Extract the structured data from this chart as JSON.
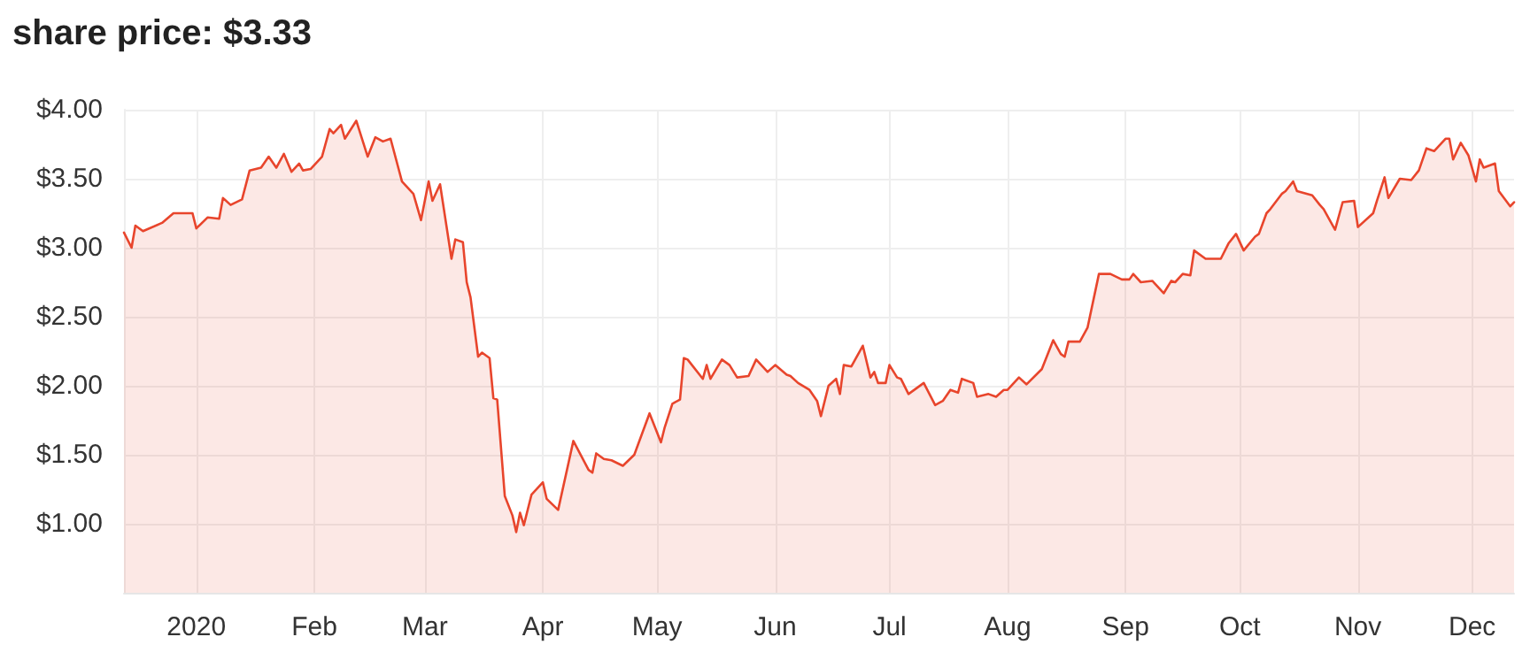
{
  "chart_data": {
    "type": "area",
    "title": "share price: $3.33",
    "x": [
      "2019-12-13",
      "2019-12-15",
      "2019-12-16",
      "2019-12-18",
      "2019-12-23",
      "2019-12-26",
      "2019-12-31",
      "2020-01-01",
      "2020-01-04",
      "2020-01-07",
      "2020-01-08",
      "2020-01-10",
      "2020-01-13",
      "2020-01-15",
      "2020-01-18",
      "2020-01-20",
      "2020-01-22",
      "2020-01-24",
      "2020-01-26",
      "2020-01-28",
      "2020-01-29",
      "2020-01-31",
      "2020-02-03",
      "2020-02-05",
      "2020-02-06",
      "2020-02-08",
      "2020-02-09",
      "2020-02-12",
      "2020-02-15",
      "2020-02-17",
      "2020-02-19",
      "2020-02-21",
      "2020-02-24",
      "2020-02-27",
      "2020-02-29",
      "2020-03-02",
      "2020-03-03",
      "2020-03-05",
      "2020-03-08",
      "2020-03-09",
      "2020-03-11",
      "2020-03-12",
      "2020-03-13",
      "2020-03-15",
      "2020-03-16",
      "2020-03-18",
      "2020-03-19",
      "2020-03-20",
      "2020-03-22",
      "2020-03-24",
      "2020-03-25",
      "2020-03-26",
      "2020-03-27",
      "2020-03-29",
      "2020-04-01",
      "2020-04-02",
      "2020-04-05",
      "2020-04-09",
      "2020-04-13",
      "2020-04-14",
      "2020-04-15",
      "2020-04-17",
      "2020-04-19",
      "2020-04-22",
      "2020-04-25",
      "2020-04-29",
      "2020-05-02",
      "2020-05-03",
      "2020-05-05",
      "2020-05-07",
      "2020-05-08",
      "2020-05-09",
      "2020-05-13",
      "2020-05-14",
      "2020-05-15",
      "2020-05-18",
      "2020-05-20",
      "2020-05-22",
      "2020-05-25",
      "2020-05-27",
      "2020-05-30",
      "2020-06-01",
      "2020-06-04",
      "2020-06-05",
      "2020-06-07",
      "2020-06-10",
      "2020-06-12",
      "2020-06-13",
      "2020-06-15",
      "2020-06-17",
      "2020-06-18",
      "2020-06-19",
      "2020-06-21",
      "2020-06-24",
      "2020-06-26",
      "2020-06-27",
      "2020-06-28",
      "2020-06-30",
      "2020-07-01",
      "2020-07-03",
      "2020-07-04",
      "2020-07-06",
      "2020-07-10",
      "2020-07-13",
      "2020-07-15",
      "2020-07-17",
      "2020-07-19",
      "2020-07-20",
      "2020-07-23",
      "2020-07-24",
      "2020-07-27",
      "2020-07-29",
      "2020-07-31",
      "2020-08-01",
      "2020-08-04",
      "2020-08-06",
      "2020-08-10",
      "2020-08-13",
      "2020-08-15",
      "2020-08-16",
      "2020-08-17",
      "2020-08-20",
      "2020-08-22",
      "2020-08-25",
      "2020-08-28",
      "2020-08-31",
      "2020-09-02",
      "2020-09-03",
      "2020-09-05",
      "2020-09-08",
      "2020-09-11",
      "2020-09-13",
      "2020-09-14",
      "2020-09-16",
      "2020-09-18",
      "2020-09-19",
      "2020-09-22",
      "2020-09-26",
      "2020-09-28",
      "2020-09-30",
      "2020-10-02",
      "2020-10-05",
      "2020-10-06",
      "2020-10-08",
      "2020-10-09",
      "2020-10-12",
      "2020-10-13",
      "2020-10-15",
      "2020-10-16",
      "2020-10-20",
      "2020-10-22",
      "2020-10-23",
      "2020-10-26",
      "2020-10-28",
      "2020-10-31",
      "2020-11-01",
      "2020-11-05",
      "2020-11-06",
      "2020-11-08",
      "2020-11-09",
      "2020-11-12",
      "2020-11-15",
      "2020-11-17",
      "2020-11-19",
      "2020-11-21",
      "2020-11-24",
      "2020-11-25",
      "2020-11-26",
      "2020-11-28",
      "2020-11-30",
      "2020-12-02",
      "2020-12-03",
      "2020-12-04",
      "2020-12-07",
      "2020-12-08",
      "2020-12-11",
      "2020-12-12"
    ],
    "series": [
      {
        "color": "#e8452c",
        "values": [
          3.11,
          3.0,
          3.16,
          3.12,
          3.18,
          3.25,
          3.25,
          3.14,
          3.22,
          3.21,
          3.36,
          3.31,
          3.35,
          3.56,
          3.58,
          3.66,
          3.58,
          3.68,
          3.55,
          3.61,
          3.56,
          3.57,
          3.66,
          3.86,
          3.83,
          3.89,
          3.79,
          3.92,
          3.66,
          3.8,
          3.77,
          3.79,
          3.48,
          3.39,
          3.2,
          3.48,
          3.34,
          3.46,
          2.92,
          3.06,
          3.04,
          2.75,
          2.64,
          2.21,
          2.24,
          2.2,
          1.91,
          1.9,
          1.2,
          1.06,
          0.94,
          1.08,
          0.99,
          1.21,
          1.3,
          1.18,
          1.1,
          1.6,
          1.39,
          1.37,
          1.51,
          1.47,
          1.46,
          1.42,
          1.5,
          1.8,
          1.59,
          1.7,
          1.87,
          1.9,
          2.2,
          2.19,
          2.05,
          2.15,
          2.05,
          2.19,
          2.15,
          2.06,
          2.07,
          2.19,
          2.1,
          2.15,
          2.08,
          2.07,
          2.02,
          1.97,
          1.89,
          1.78,
          2.0,
          2.05,
          1.94,
          2.15,
          2.14,
          2.29,
          2.06,
          2.1,
          2.02,
          2.02,
          2.15,
          2.06,
          2.05,
          1.94,
          2.02,
          1.86,
          1.89,
          1.97,
          1.95,
          2.05,
          2.02,
          1.92,
          1.94,
          1.92,
          1.97,
          1.97,
          2.06,
          2.01,
          2.12,
          2.33,
          2.23,
          2.21,
          2.32,
          2.32,
          2.42,
          2.81,
          2.81,
          2.77,
          2.77,
          2.81,
          2.75,
          2.76,
          2.67,
          2.76,
          2.75,
          2.81,
          2.8,
          2.98,
          2.92,
          2.92,
          3.03,
          3.1,
          2.98,
          3.08,
          3.1,
          3.25,
          3.28,
          3.39,
          3.41,
          3.48,
          3.41,
          3.38,
          3.31,
          3.28,
          3.13,
          3.33,
          3.34,
          3.15,
          3.25,
          3.34,
          3.51,
          3.36,
          3.5,
          3.49,
          3.56,
          3.72,
          3.7,
          3.79,
          3.79,
          3.64,
          3.76,
          3.67,
          3.48,
          3.64,
          3.58,
          3.61,
          3.41,
          3.3,
          3.33
        ]
      }
    ],
    "xlim": [
      "2019-12-13",
      "2020-12-12"
    ],
    "xticks": [
      {
        "value": "2020-01-01",
        "label": "2020"
      },
      {
        "value": "2020-02-01",
        "label": "Feb"
      },
      {
        "value": "2020-03-01",
        "label": "Mar"
      },
      {
        "value": "2020-04-01",
        "label": "Apr"
      },
      {
        "value": "2020-05-01",
        "label": "May"
      },
      {
        "value": "2020-06-01",
        "label": "Jun"
      },
      {
        "value": "2020-07-01",
        "label": "Jul"
      },
      {
        "value": "2020-08-01",
        "label": "Aug"
      },
      {
        "value": "2020-09-01",
        "label": "Sep"
      },
      {
        "value": "2020-10-01",
        "label": "Oct"
      },
      {
        "value": "2020-11-01",
        "label": "Nov"
      },
      {
        "value": "2020-12-01",
        "label": "Dec"
      }
    ],
    "ylim": [
      0.5,
      4.0
    ],
    "yticks": [
      {
        "value": 1,
        "label": "$1.00"
      },
      {
        "value": 1.5,
        "label": "$1.50"
      },
      {
        "value": 2,
        "label": "$2.00"
      },
      {
        "value": 2.5,
        "label": "$2.50"
      },
      {
        "value": 3,
        "label": "$3.00"
      },
      {
        "value": 3.5,
        "label": "$3.50"
      },
      {
        "value": 4,
        "label": "$4.00"
      }
    ],
    "grid": true,
    "marker": "none",
    "line_style": "solid"
  }
}
